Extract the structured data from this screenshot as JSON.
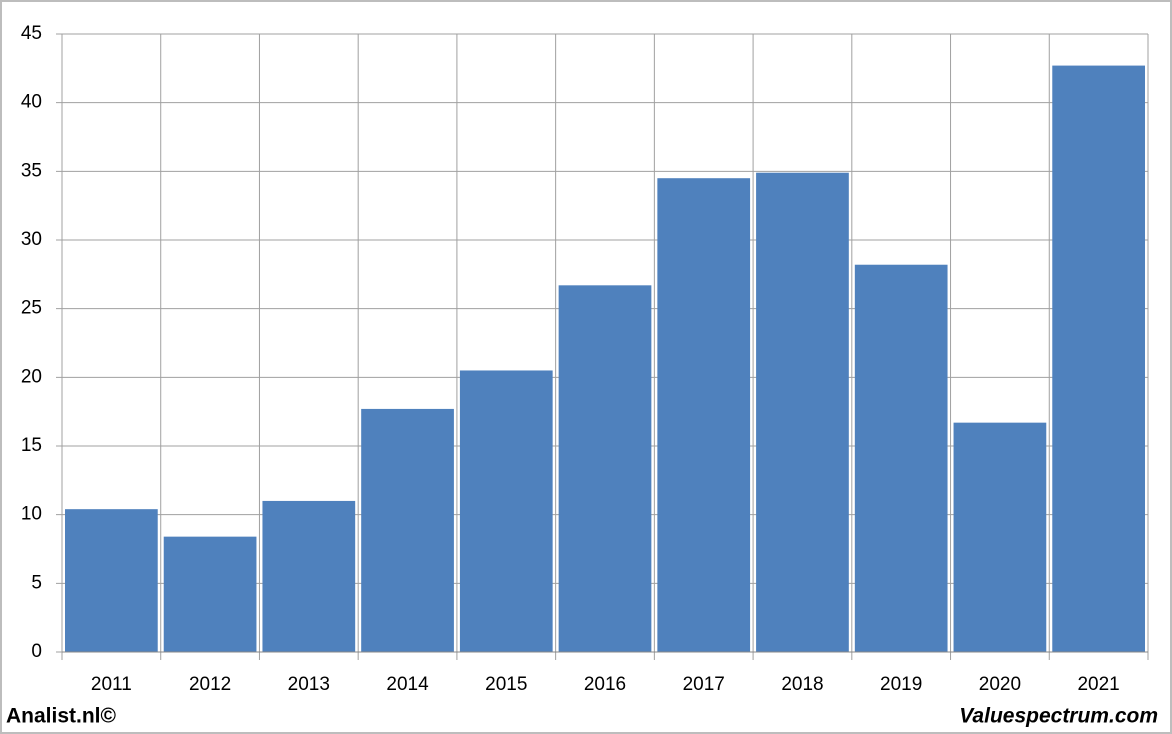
{
  "chart_data": {
    "type": "bar",
    "categories": [
      "2011",
      "2012",
      "2013",
      "2014",
      "2015",
      "2016",
      "2017",
      "2018",
      "2019",
      "2020",
      "2021"
    ],
    "values": [
      10.4,
      8.4,
      11.0,
      17.7,
      20.5,
      26.7,
      34.5,
      34.9,
      28.2,
      16.7,
      42.7
    ],
    "color": "#4f81bd",
    "ylim": [
      0,
      45
    ],
    "yticks": [
      0,
      5,
      10,
      15,
      20,
      25,
      30,
      35,
      40,
      45
    ],
    "grid": true,
    "footer_left": "Analist.nl©",
    "footer_right": "Valuespectrum.com"
  }
}
